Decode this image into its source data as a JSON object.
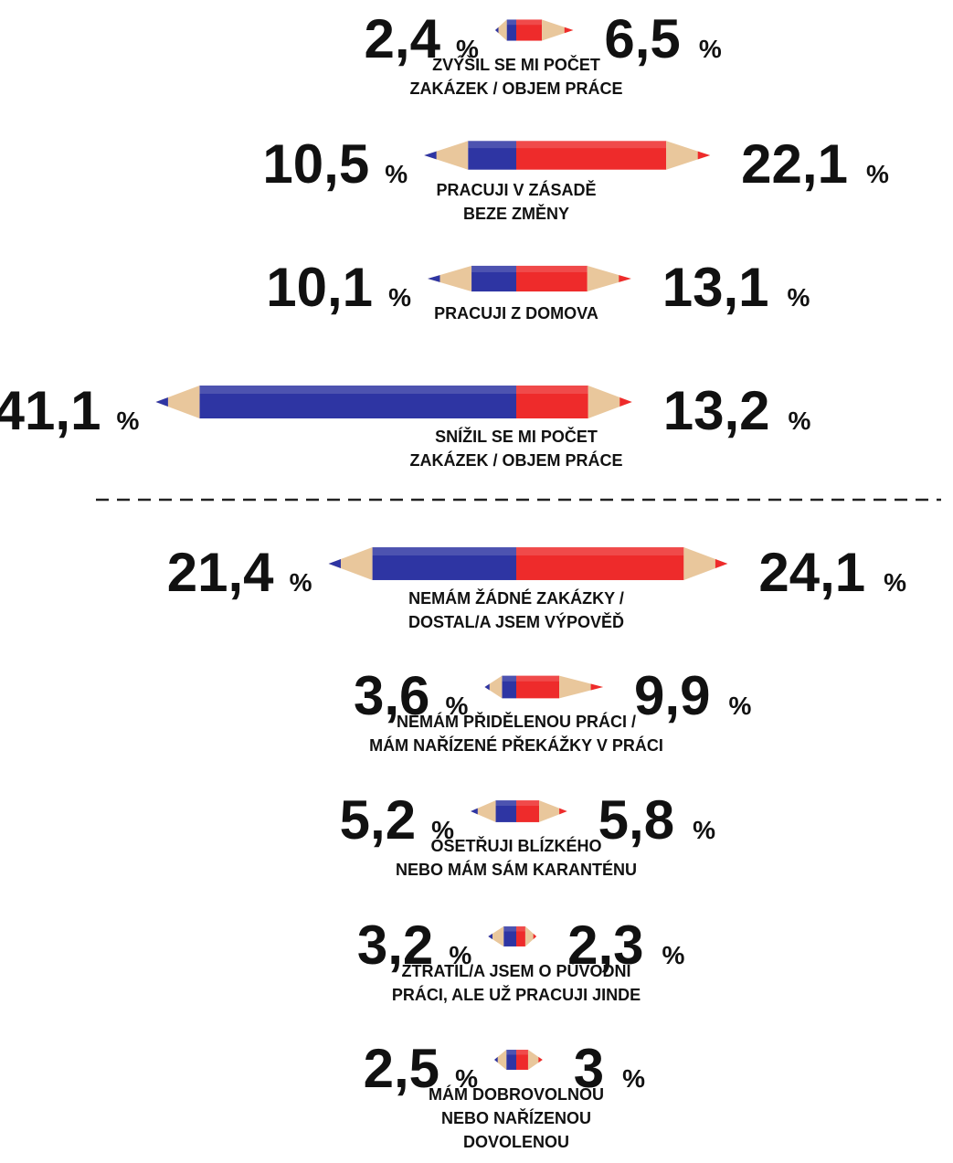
{
  "chart_data": {
    "type": "pencil-diverging",
    "unit": "%",
    "categories": [
      [
        "ZVÝŠIL SE MI POČET",
        "ZAKÁZEK / OBJEM PRÁCE"
      ],
      [
        "PRACUJI V ZÁSADĚ",
        "BEZE ZMĚNY"
      ],
      [
        "PRACUJI Z DOMOVA"
      ],
      [
        "SNÍŽIL SE MI POČET",
        "ZAKÁZEK / OBJEM PRÁCE"
      ],
      [
        "NEMÁM ŽÁDNÉ ZAKÁZKY /",
        "DOSTAL/A JSEM VÝPOVĚĎ"
      ],
      [
        "NEMÁM PŘIDĚLENOU PRÁCI /",
        "MÁM NAŘÍZENÉ PŘEKÁŽKY V PRÁCI"
      ],
      [
        "OŠETŘUJI BLÍZKÉHO",
        "NEBO MÁM SÁM KARANTÉNU"
      ],
      [
        "ZTRATIL/A JSEM O PŮVODNÍ",
        "PRÁCI, ALE UŽ PRACUJI JINDE"
      ],
      [
        "MÁM DOBROVOLNOU",
        "NEBO NAŘÍZENOU",
        "DOVOLENOU"
      ]
    ],
    "series": [
      {
        "color": "#2e35a3",
        "values": [
          2.4,
          10.5,
          10.1,
          41.1,
          21.4,
          3.6,
          5.2,
          3.2,
          2.5
        ],
        "value_labels": [
          "2,4",
          "10,5",
          "10,1",
          "41,1",
          "21,4",
          "3,6",
          "5,2",
          "3,2",
          "2,5"
        ]
      },
      {
        "color": "#ee2b2b",
        "values": [
          6.5,
          22.1,
          13.1,
          13.2,
          24.1,
          9.9,
          5.8,
          2.3,
          3
        ],
        "value_labels": [
          "6,5",
          "22,1",
          "13,1",
          "13,2",
          "24,1",
          "9,9",
          "5,8",
          "2,3",
          "3"
        ]
      }
    ]
  }
}
